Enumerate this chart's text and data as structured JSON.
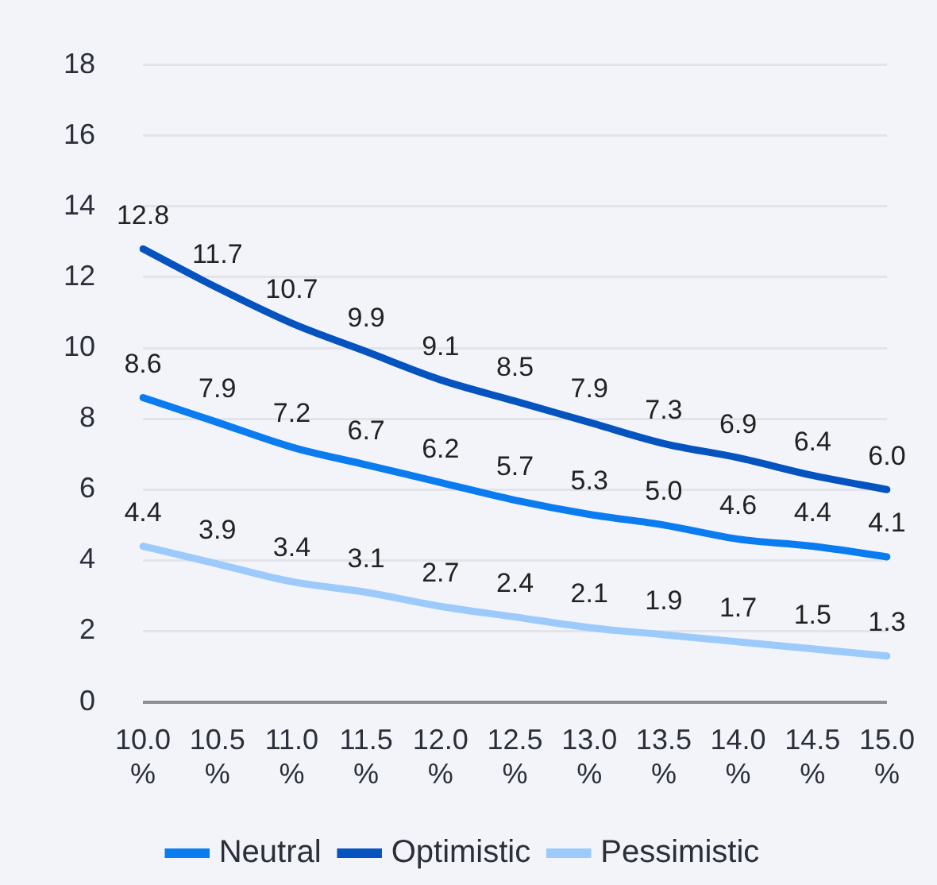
{
  "chart_data": {
    "type": "line",
    "categories": [
      "10.0%",
      "10.5%",
      "11.0%",
      "11.5%",
      "12.0%",
      "12.5%",
      "13.0%",
      "13.5%",
      "14.0%",
      "14.5%",
      "15.0%"
    ],
    "series": [
      {
        "name": "Neutral",
        "color": "#0a7cf0",
        "values": [
          8.6,
          7.9,
          7.2,
          6.7,
          6.2,
          5.7,
          5.3,
          5.0,
          4.6,
          4.4,
          4.1
        ],
        "value_labels": [
          "8.6",
          "7.9",
          "7.2",
          "6.7",
          "6.2",
          "5.7",
          "5.3",
          "5.0",
          "4.6",
          "4.4",
          "4.1"
        ]
      },
      {
        "name": "Optimistic",
        "color": "#0553bf",
        "values": [
          12.8,
          11.7,
          10.7,
          9.9,
          9.1,
          8.5,
          7.9,
          7.3,
          6.9,
          6.4,
          6.0
        ],
        "value_labels": [
          "12.8",
          "11.7",
          "10.7",
          "9.9",
          "9.1",
          "8.5",
          "7.9",
          "7.3",
          "6.9",
          "6.4",
          "6.0"
        ]
      },
      {
        "name": "Pessimistic",
        "color": "#9ccbfb",
        "values": [
          4.4,
          3.9,
          3.4,
          3.1,
          2.7,
          2.4,
          2.1,
          1.9,
          1.7,
          1.5,
          1.3
        ],
        "value_labels": [
          "4.4",
          "3.9",
          "3.4",
          "3.1",
          "2.7",
          "2.4",
          "2.1",
          "1.9",
          "1.7",
          "1.5",
          "1.3"
        ]
      }
    ],
    "ylim": [
      0,
      18
    ],
    "yticks": [
      0,
      2,
      4,
      6,
      8,
      10,
      12,
      14,
      16,
      18
    ],
    "grid": "y",
    "legend": "bottom",
    "marker": "none",
    "line_style": "solid"
  }
}
